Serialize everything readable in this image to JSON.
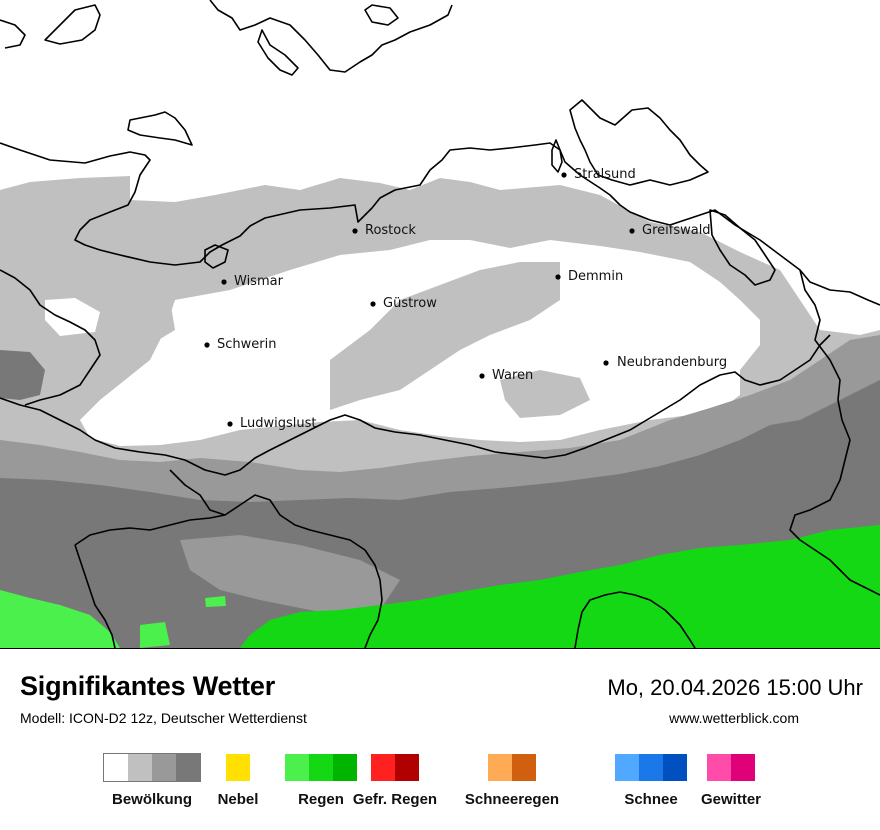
{
  "title": "Signifikantes Wetter",
  "model": "Modell: ICON-D2 12z, Deutscher Wetterdienst",
  "datetime": "Mo, 20.04.2026 15:00 Uhr",
  "website": "www.wetterblick.com",
  "map": {
    "colors": {
      "clear": "#ffffff",
      "cloud_light": "#c0c0c0",
      "cloud_medium": "#999999",
      "cloud_dark": "#787878",
      "rain_light": "#4cf04c",
      "rain": "#14d814"
    },
    "cities": [
      {
        "name": "Stralsund"
      },
      {
        "name": "Greifswald"
      },
      {
        "name": "Rostock"
      },
      {
        "name": "Demmin"
      },
      {
        "name": "Wismar"
      },
      {
        "name": "Güstrow"
      },
      {
        "name": "Schwerin"
      },
      {
        "name": "Neubrandenburg"
      },
      {
        "name": "Waren"
      },
      {
        "name": "Ludwigslust"
      }
    ]
  },
  "legend": [
    {
      "label": "Bewölkung",
      "colors": [
        "#ffffff",
        "#c0c0c0",
        "#999999",
        "#787878"
      ]
    },
    {
      "label": "Nebel",
      "colors": [
        "#ffe000"
      ]
    },
    {
      "label": "Regen",
      "colors": [
        "#4cf04c",
        "#14d814",
        "#00b400"
      ]
    },
    {
      "label": "Gefr. Regen",
      "colors": [
        "#ff2020",
        "#b00000"
      ]
    },
    {
      "label": "Schneeregen",
      "colors": [
        "#ffaa55",
        "#d06010"
      ]
    },
    {
      "label": "Schnee",
      "colors": [
        "#50a8ff",
        "#1a78e8",
        "#0050c0"
      ]
    },
    {
      "label": "Gewitter",
      "colors": [
        "#ff4ca8",
        "#e00078"
      ]
    }
  ]
}
